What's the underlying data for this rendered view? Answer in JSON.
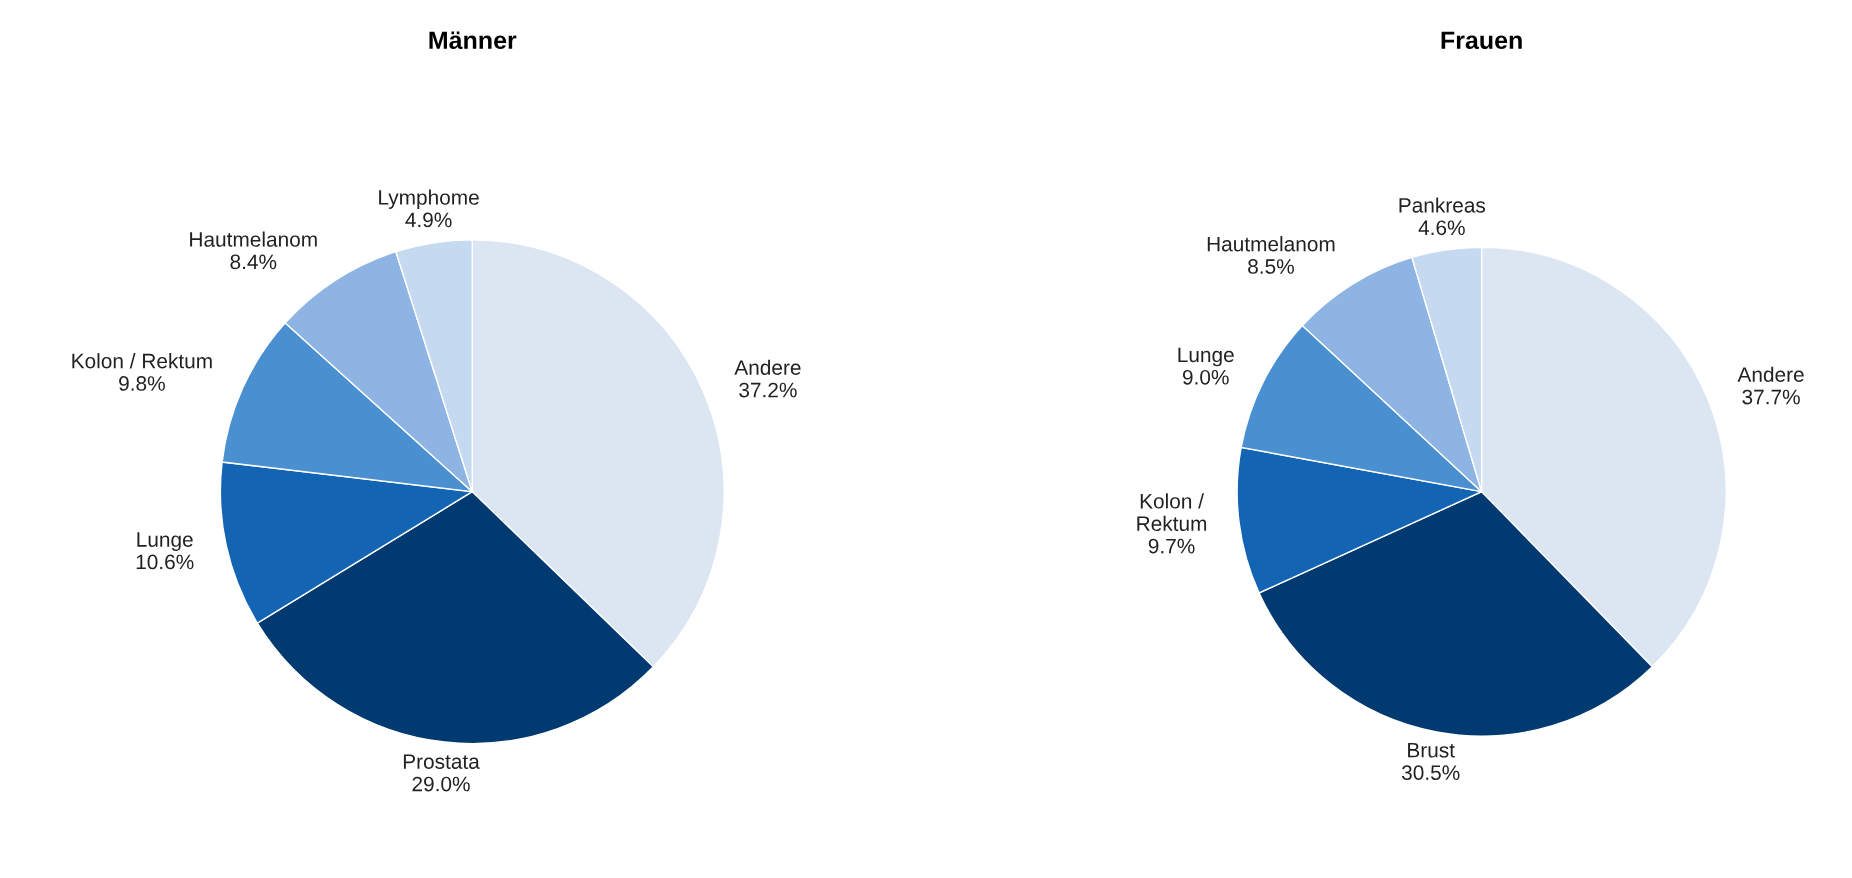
{
  "chart_data": [
    {
      "type": "pie",
      "title": "Männer",
      "categories": [
        "Andere",
        "Prostata",
        "Lunge",
        "Kolon / Rektum",
        "Hautmelanom",
        "Lymphome"
      ],
      "values": [
        37.2,
        29.0,
        10.6,
        9.8,
        8.4,
        4.9
      ],
      "value_labels": [
        "37.2%",
        "29.0%",
        "10.6%",
        "9.8%",
        "8.4%",
        "4.9%"
      ],
      "colors": [
        "#dce6f2",
        "#003a70",
        "#1464b4",
        "#4a8fcf",
        "#8db4e2",
        "#c5d9f1"
      ]
    },
    {
      "type": "pie",
      "title": "Frauen",
      "categories": [
        "Andere",
        "Brust",
        "Kolon /\nRektum",
        "Lunge",
        "Hautmelanom",
        "Pankreas"
      ],
      "values": [
        37.7,
        30.5,
        9.7,
        9.0,
        8.5,
        4.6
      ],
      "value_labels": [
        "37.7%",
        "30.5%",
        "9.7%",
        "9.0%",
        "8.5%",
        "4.6%"
      ],
      "colors": [
        "#dce6f2",
        "#003a70",
        "#1464b4",
        "#4a8fcf",
        "#8db4e2",
        "#c5d9f1"
      ]
    }
  ]
}
